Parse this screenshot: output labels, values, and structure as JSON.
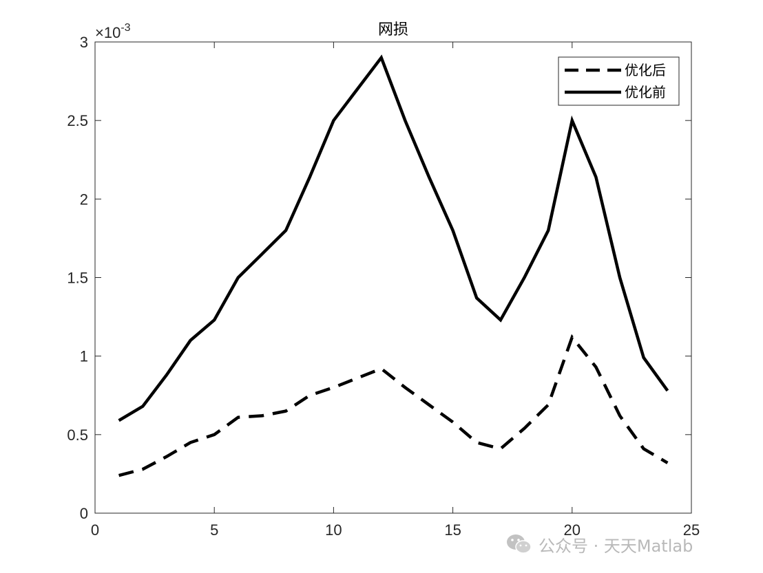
{
  "chart_data": {
    "type": "line",
    "title": "网损",
    "xlabel": "",
    "ylabel": "",
    "xlim": [
      0,
      25
    ],
    "ylim": [
      0,
      0.003
    ],
    "y_exponent_label": "×10",
    "y_exponent_power": "-3",
    "xticks": [
      0,
      5,
      10,
      15,
      20,
      25
    ],
    "xtick_labels": [
      "0",
      "5",
      "10",
      "15",
      "20",
      "25"
    ],
    "yticks": [
      0,
      0.0005,
      0.001,
      0.0015,
      0.002,
      0.0025,
      0.003
    ],
    "ytick_labels": [
      "0",
      "0.5",
      "1",
      "1.5",
      "2",
      "2.5",
      "3"
    ],
    "x": [
      1,
      2,
      3,
      4,
      5,
      6,
      7,
      8,
      9,
      10,
      11,
      12,
      13,
      14,
      15,
      16,
      17,
      18,
      19,
      20,
      21,
      22,
      23,
      24
    ],
    "series": [
      {
        "name": "优化后",
        "style": "dashed",
        "color": "#000000",
        "values": [
          0.00024,
          0.00028,
          0.00036,
          0.00045,
          0.0005,
          0.00061,
          0.00062,
          0.00065,
          0.00075,
          0.0008,
          0.00086,
          0.00092,
          0.0008,
          0.00069,
          0.00058,
          0.00045,
          0.00041,
          0.00054,
          0.00069,
          0.00112,
          0.00093,
          0.00062,
          0.00041,
          0.00032
        ]
      },
      {
        "name": "优化前",
        "style": "solid",
        "color": "#000000",
        "values": [
          0.00059,
          0.00068,
          0.00088,
          0.0011,
          0.00123,
          0.0015,
          0.00165,
          0.0018,
          0.00214,
          0.0025,
          0.0027,
          0.0029,
          0.0025,
          0.00214,
          0.0018,
          0.00137,
          0.00123,
          0.0015,
          0.0018,
          0.0025,
          0.00214,
          0.0015,
          0.00099,
          0.00078
        ]
      }
    ],
    "legend_position": "top-right",
    "grid": false
  },
  "watermark": {
    "icon": "wechat-icon",
    "text": "公众号 · 天天Matlab"
  }
}
